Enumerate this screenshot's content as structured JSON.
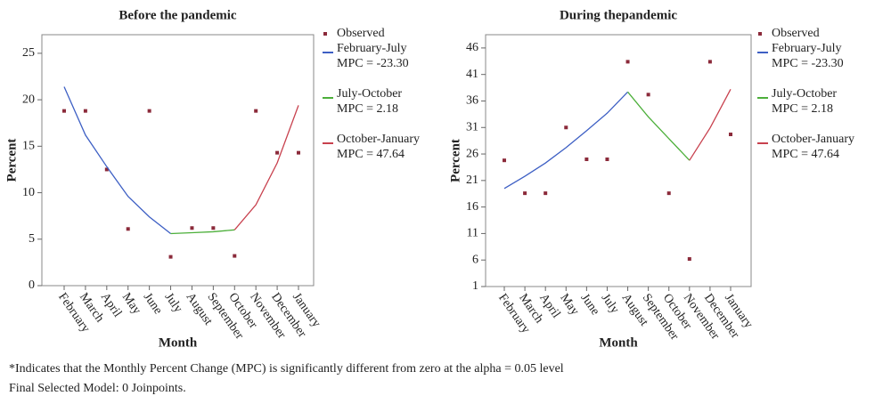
{
  "chart_data": [
    {
      "type": "line",
      "title": "Before the pandemic",
      "xlabel": "Month",
      "ylabel": "Percent",
      "categories": [
        "February",
        "March",
        "April",
        "May",
        "June",
        "July",
        "August",
        "September",
        "October",
        "November",
        "December",
        "January"
      ],
      "ylim": [
        0,
        27
      ],
      "yticks": [
        0,
        5,
        10,
        15,
        20,
        25
      ],
      "series": [
        {
          "name": "Observed",
          "color": "#8b2a3a",
          "style": "points",
          "values": [
            18.8,
            18.8,
            12.5,
            6.1,
            18.8,
            3.1,
            6.2,
            6.2,
            3.2,
            18.8,
            14.3,
            14.3
          ]
        },
        {
          "name": "February-July",
          "mpc": "MPC = -23.30",
          "color": "#3d5fc4",
          "style": "line",
          "values": [
            21.4,
            16.2,
            12.8,
            9.6,
            7.4,
            5.6,
            null,
            null,
            null,
            null,
            null,
            null
          ]
        },
        {
          "name": "July-October",
          "mpc": "MPC = 2.18",
          "color": "#4caf3a",
          "style": "line",
          "values": [
            null,
            null,
            null,
            null,
            null,
            5.6,
            5.7,
            5.8,
            6.0,
            null,
            null,
            null
          ]
        },
        {
          "name": "October-January",
          "mpc": "MPC = 47.64",
          "color": "#c8414e",
          "style": "line",
          "values": [
            null,
            null,
            null,
            null,
            null,
            null,
            null,
            null,
            6.0,
            8.7,
            13.2,
            19.4
          ]
        }
      ]
    },
    {
      "type": "line",
      "title": "During thepandemic",
      "xlabel": "Month",
      "ylabel": "Percent",
      "categories": [
        "February",
        "March",
        "April",
        "May",
        "June",
        "July",
        "August",
        "September",
        "October",
        "November",
        "December",
        "January"
      ],
      "ylim": [
        1,
        48.5
      ],
      "yticks": [
        1,
        6,
        11,
        16,
        21,
        26,
        31,
        36,
        41,
        46
      ],
      "series": [
        {
          "name": "Observed",
          "color": "#8b2a3a",
          "style": "points",
          "values": [
            24.8,
            18.6,
            18.6,
            31.0,
            25,
            25,
            43.4,
            37.2,
            18.6,
            6.2,
            43.4,
            29.7
          ]
        },
        {
          "name": "February-July",
          "mpc": "MPC = -23.30",
          "color": "#3d5fc4",
          "style": "line",
          "values": [
            19.5,
            21.8,
            24.3,
            27.2,
            30.4,
            33.7,
            37.7,
            null,
            null,
            null,
            null,
            null
          ]
        },
        {
          "name": "July-October",
          "mpc": "MPC = 2.18",
          "color": "#4caf3a",
          "style": "line",
          "values": [
            null,
            null,
            null,
            null,
            null,
            null,
            37.7,
            33.0,
            28.9,
            24.8,
            null,
            null
          ]
        },
        {
          "name": "October-January",
          "mpc": "MPC = 47.64",
          "color": "#c8414e",
          "style": "line",
          "values": [
            null,
            null,
            null,
            null,
            null,
            null,
            null,
            null,
            null,
            24.8,
            30.9,
            38.2
          ]
        }
      ]
    }
  ],
  "footnotes": [
    "*Indicates that the Monthly Percent Change (MPC) is significantly different from zero at the alpha = 0.05 level",
    "Final Selected Model: 0 Joinpoints."
  ]
}
